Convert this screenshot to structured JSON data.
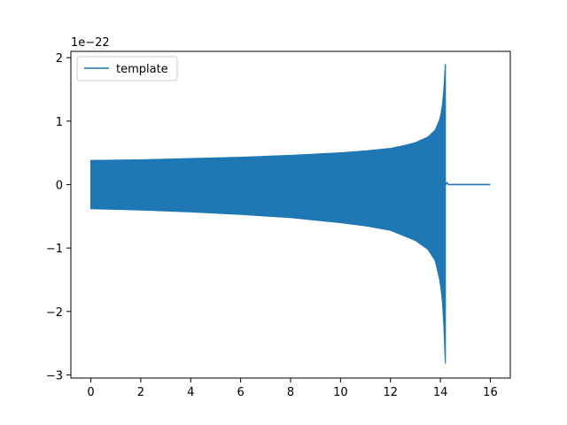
{
  "chart_data": {
    "type": "line",
    "title": "",
    "xlabel": "",
    "ylabel": "",
    "y_offset_label": "1e−22",
    "xlim": [
      -0.8,
      16.8
    ],
    "ylim": [
      -3.05,
      2.1
    ],
    "x_ticks": [
      0,
      2,
      4,
      6,
      8,
      10,
      12,
      14,
      16
    ],
    "x_tick_labels": [
      "0",
      "2",
      "4",
      "6",
      "8",
      "10",
      "12",
      "14",
      "16"
    ],
    "y_ticks": [
      -3,
      -2,
      -1,
      0,
      1,
      2
    ],
    "y_tick_labels": [
      "−3",
      "−2",
      "−1",
      "0",
      "1",
      "2"
    ],
    "grid": false,
    "legend": {
      "placement": "top-left",
      "entries": [
        "template"
      ]
    },
    "series": [
      {
        "name": "template",
        "color": "#1f77b4",
        "style": "oscillating chirp envelope",
        "upper_envelope": {
          "x": [
            0,
            2,
            4,
            6,
            8,
            10,
            11,
            12,
            12.5,
            13,
            13.5,
            13.8,
            14.0,
            14.1,
            14.15,
            14.2
          ],
          "y": [
            0.38,
            0.39,
            0.41,
            0.43,
            0.46,
            0.5,
            0.53,
            0.57,
            0.61,
            0.66,
            0.75,
            0.86,
            1.05,
            1.3,
            1.55,
            1.9
          ]
        },
        "lower_envelope": {
          "x": [
            0,
            2,
            4,
            6,
            8,
            10,
            11,
            12,
            12.5,
            13,
            13.5,
            13.8,
            14.0,
            14.1,
            14.15,
            14.2
          ],
          "y": [
            -0.38,
            -0.4,
            -0.43,
            -0.47,
            -0.52,
            -0.6,
            -0.65,
            -0.72,
            -0.8,
            -0.88,
            -1.02,
            -1.2,
            -1.55,
            -1.9,
            -2.3,
            -2.82
          ]
        },
        "merger_time": 14.2,
        "ringdown_end": 14.32,
        "flat_tail": {
          "x": [
            14.32,
            16.0
          ],
          "y": 0
        }
      }
    ]
  }
}
